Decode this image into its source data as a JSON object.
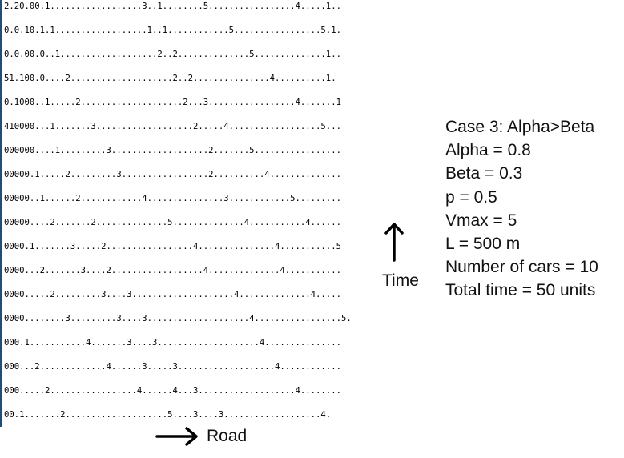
{
  "simulation": {
    "rows": [
      "2.20.00.1..................3..1........5.................4.....1..",
      "0.0.10.1.1..................1..1............5.................5.1.",
      "0.0.00.0..1...................2..2..............5..............1..",
      "51.100.0....2....................2..2...............4..........1.",
      "0.1000..1.....2....................2...3.................4.......1",
      "410000...1.......3...................2.....4..................5...",
      "000000....1.........3...................2.......5.................",
      "00000.1.....2.........3.................2..........4..............",
      "00000..1......2............4...............3............5.........",
      "00000....2.......2..............5..............4...........4......",
      "0000.1.......3.....2.................4...............4...........5",
      "0000...2.......3....2..................4..............4...........",
      "0000.....2.........3....3....................4..............4.....",
      "0000........3.........3....3....................4.................5.",
      "000.1...........4.......3....3....................4...............",
      "000...2.............4......3.....3...................4............",
      "000.....2.................4......4...3...................4........",
      "00.1.......2....................5....3....3...................4."
    ]
  },
  "axes": {
    "time_label": "Time",
    "road_label": "Road"
  },
  "parameters": {
    "case_title": "Case 3: Alpha>Beta",
    "alpha": "Alpha = 0.8",
    "beta": "Beta = 0.3",
    "p": "p = 0.5",
    "vmax": "Vmax = 5",
    "length": "L = 500 m",
    "num_cars": "Number of cars = 10",
    "total_time": "Total time = 50 units"
  },
  "icons": {
    "time_arrow": "arrow-up-icon",
    "road_arrow": "arrow-right-icon"
  },
  "colors": {
    "text": "#000000",
    "left_border": "#1f4e79"
  }
}
